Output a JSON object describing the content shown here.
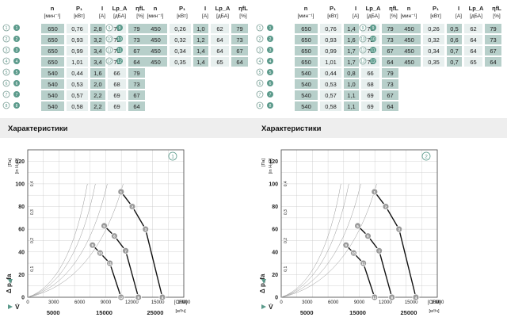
{
  "panels": [
    {
      "id": "1",
      "section_title": "Характеристики",
      "table": {
        "headers": [
          {
            "main": "n",
            "sub": "[мин⁻¹]"
          },
          {
            "main": "P₁",
            "sub": "[кВт]"
          },
          {
            "main": "I",
            "sub": "[A]"
          },
          {
            "main": "Lp_A",
            "sub": "[дБА]"
          },
          {
            "main": "ηfL",
            "sub": "[%]"
          }
        ],
        "left_rows": [
          {
            "point": "1",
            "values": [
              "650",
              "0,76",
              "2,8",
              "70",
              "79"
            ]
          },
          {
            "point": "2",
            "values": [
              "650",
              "0,93",
              "3,2",
              "72",
              "73"
            ]
          },
          {
            "point": "3",
            "values": [
              "650",
              "0,99",
              "3,4",
              "73",
              "67"
            ]
          },
          {
            "point": "4",
            "values": [
              "650",
              "1,01",
              "3,4",
              "73",
              "64"
            ]
          },
          {
            "point": "5",
            "values": [
              "540",
              "0,44",
              "1,6",
              "66",
              "79"
            ]
          },
          {
            "point": "6",
            "values": [
              "540",
              "0,53",
              "2,0",
              "68",
              "73"
            ]
          },
          {
            "point": "7",
            "values": [
              "540",
              "0,57",
              "2,2",
              "69",
              "67"
            ]
          },
          {
            "point": "8",
            "values": [
              "540",
              "0,58",
              "2,2",
              "69",
              "64"
            ]
          }
        ],
        "right_rows": [
          {
            "point": "9",
            "values": [
              "450",
              "0,26",
              "1,0",
              "62",
              "79"
            ]
          },
          {
            "point": "10",
            "values": [
              "450",
              "0,32",
              "1,2",
              "64",
              "73"
            ]
          },
          {
            "point": "11",
            "values": [
              "450",
              "0,34",
              "1,4",
              "64",
              "67"
            ]
          },
          {
            "point": "12",
            "values": [
              "450",
              "0,35",
              "1,4",
              "65",
              "64"
            ]
          }
        ]
      }
    },
    {
      "id": "2",
      "section_title": "Характеристики",
      "table": {
        "headers": [
          {
            "main": "n",
            "sub": "[мин⁻¹]"
          },
          {
            "main": "P₁",
            "sub": "[кВт]"
          },
          {
            "main": "I",
            "sub": "[A]"
          },
          {
            "main": "Lp_A",
            "sub": "[дБА]"
          },
          {
            "main": "ηfL",
            "sub": "[%]"
          }
        ],
        "left_rows": [
          {
            "point": "1",
            "values": [
              "650",
              "0,76",
              "1,4",
              "70",
              "79"
            ]
          },
          {
            "point": "2",
            "values": [
              "650",
              "0,93",
              "1,6",
              "72",
              "73"
            ]
          },
          {
            "point": "3",
            "values": [
              "650",
              "0,99",
              "1,7",
              "73",
              "67"
            ]
          },
          {
            "point": "4",
            "values": [
              "650",
              "1,01",
              "1,7",
              "73",
              "64"
            ]
          },
          {
            "point": "5",
            "values": [
              "540",
              "0,44",
              "0,8",
              "66",
              "79"
            ]
          },
          {
            "point": "6",
            "values": [
              "540",
              "0,53",
              "1,0",
              "68",
              "73"
            ]
          },
          {
            "point": "7",
            "values": [
              "540",
              "0,57",
              "1,1",
              "69",
              "67"
            ]
          },
          {
            "point": "8",
            "values": [
              "540",
              "0,58",
              "1,1",
              "69",
              "64"
            ]
          }
        ],
        "right_rows": [
          {
            "point": "9",
            "values": [
              "450",
              "0,26",
              "0,5",
              "62",
              "79"
            ]
          },
          {
            "point": "10",
            "values": [
              "450",
              "0,32",
              "0,6",
              "64",
              "73"
            ]
          },
          {
            "point": "11",
            "values": [
              "450",
              "0,34",
              "0,7",
              "64",
              "67"
            ]
          },
          {
            "point": "12",
            "values": [
              "450",
              "0,35",
              "0,7",
              "65",
              "64"
            ]
          }
        ]
      }
    }
  ],
  "colors": {
    "accent": "#5b9a8b",
    "row_light": "#e7efee",
    "row_mid": "#b7cfca",
    "title_bar": "#eeeeee",
    "grid": "#c8c8c8"
  },
  "chart_data": [
    {
      "type": "line",
      "chart_label": "1",
      "ylabel_main": "Δ p_fa",
      "ylabel_unit": "[Па]",
      "ylabel_alt": "[in H₂O]",
      "y_ticks": [
        "0",
        "20",
        "40",
        "60",
        "80",
        "100",
        "120"
      ],
      "y_alt_ticks": [
        "0,1",
        "0,2",
        "0,3",
        "0,4"
      ],
      "x_ticks_cfm": [
        "0",
        "3000",
        "6000",
        "9000",
        "12000",
        "15000",
        "18000"
      ],
      "x_unit_cfm": "[CFM]",
      "x_ticks_m3h": [
        "5000",
        "15000",
        "25000"
      ],
      "x_unit_m3h": "[м³/ч]",
      "xlabel": "V̇",
      "xlim": [
        0,
        30600
      ],
      "ylim": [
        0,
        130
      ],
      "grid": true,
      "series": [
        {
          "x": [
            18300,
            20500,
            23100,
            26400
          ],
          "y": [
            93,
            80,
            60,
            0
          ]
        },
        {
          "x": [
            15000,
            17000,
            19200,
            21700
          ],
          "y": [
            63,
            54,
            41,
            0
          ]
        },
        {
          "x": [
            12700,
            14200,
            16100,
            18300
          ],
          "y": [
            46,
            39,
            30,
            0
          ]
        }
      ],
      "points": [
        {
          "label": "1",
          "x": 18300,
          "y": 93
        },
        {
          "label": "2",
          "x": 20500,
          "y": 80
        },
        {
          "label": "3",
          "x": 23100,
          "y": 60
        },
        {
          "label": "4",
          "x": 26400,
          "y": 0
        },
        {
          "label": "5",
          "x": 15000,
          "y": 63
        },
        {
          "label": "6",
          "x": 17000,
          "y": 54
        },
        {
          "label": "7",
          "x": 19200,
          "y": 41
        },
        {
          "label": "8",
          "x": 21700,
          "y": 0
        },
        {
          "label": "9",
          "x": 12700,
          "y": 46
        },
        {
          "label": "10",
          "x": 14200,
          "y": 39
        },
        {
          "label": "11",
          "x": 16100,
          "y": 30
        },
        {
          "label": "12",
          "x": 18300,
          "y": 0
        }
      ]
    },
    {
      "type": "line",
      "chart_label": "2",
      "ylabel_main": "Δ p_fa",
      "ylabel_unit": "[Па]",
      "ylabel_alt": "[in H₂O]",
      "y_ticks": [
        "0",
        "20",
        "40",
        "60",
        "80",
        "100",
        "120"
      ],
      "y_alt_ticks": [
        "0,1",
        "0,2",
        "0,3",
        "0,4"
      ],
      "x_ticks_cfm": [
        "0",
        "3000",
        "6000",
        "9000",
        "12000",
        "15000",
        "18000"
      ],
      "x_unit_cfm": "[CFM]",
      "x_ticks_m3h": [
        "5000",
        "15000",
        "25000"
      ],
      "x_unit_m3h": "[м³/ч]",
      "xlabel": "V̇",
      "xlim": [
        0,
        30600
      ],
      "ylim": [
        0,
        130
      ],
      "grid": true,
      "series": [
        {
          "x": [
            18300,
            20500,
            23100,
            26400
          ],
          "y": [
            93,
            80,
            60,
            0
          ]
        },
        {
          "x": [
            15000,
            17000,
            19200,
            21700
          ],
          "y": [
            63,
            54,
            41,
            0
          ]
        },
        {
          "x": [
            12700,
            14200,
            16100,
            18300
          ],
          "y": [
            46,
            39,
            30,
            0
          ]
        }
      ],
      "points": [
        {
          "label": "1",
          "x": 18300,
          "y": 93
        },
        {
          "label": "2",
          "x": 20500,
          "y": 80
        },
        {
          "label": "3",
          "x": 23100,
          "y": 60
        },
        {
          "label": "4",
          "x": 26400,
          "y": 0
        },
        {
          "label": "5",
          "x": 15000,
          "y": 63
        },
        {
          "label": "6",
          "x": 17000,
          "y": 54
        },
        {
          "label": "7",
          "x": 19200,
          "y": 41
        },
        {
          "label": "8",
          "x": 21700,
          "y": 0
        },
        {
          "label": "9",
          "x": 12700,
          "y": 46
        },
        {
          "label": "10",
          "x": 14200,
          "y": 39
        },
        {
          "label": "11",
          "x": 16100,
          "y": 30
        },
        {
          "label": "12",
          "x": 18300,
          "y": 0
        }
      ]
    }
  ]
}
